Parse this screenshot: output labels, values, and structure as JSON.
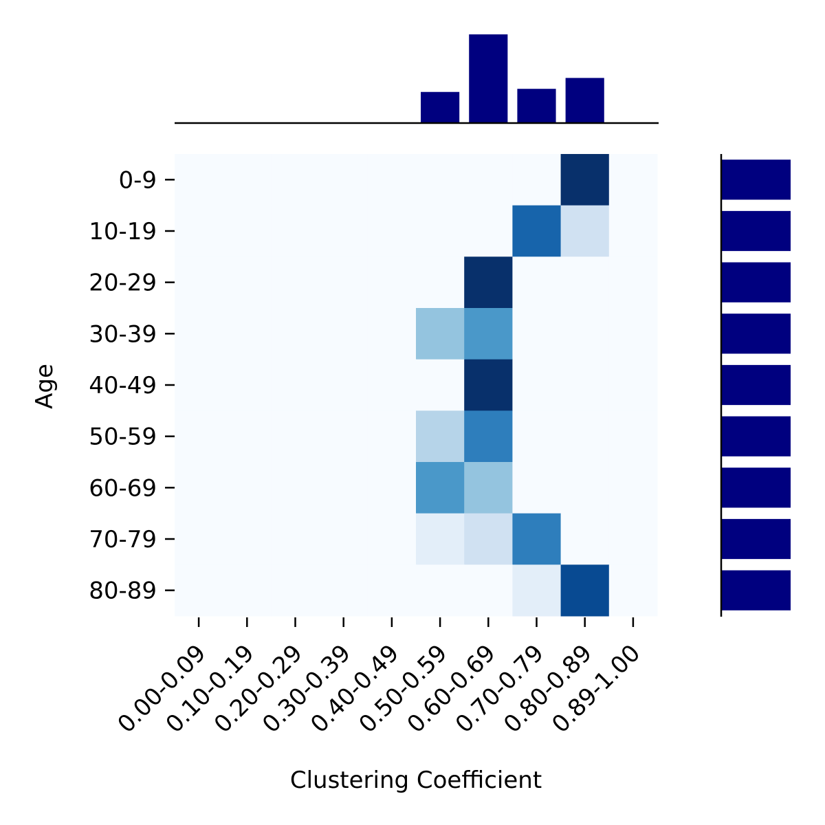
{
  "chart_data": {
    "type": "heatmap",
    "title": "",
    "xlabel": "Clustering Coefficient",
    "ylabel": "Age",
    "x_categories": [
      "0.00-0.09",
      "0.10-0.19",
      "0.20-0.29",
      "0.30-0.39",
      "0.40-0.49",
      "0.50-0.59",
      "0.60-0.69",
      "0.70-0.79",
      "0.80-0.89",
      "0.89-1.00"
    ],
    "y_categories": [
      "0-9",
      "10-19",
      "20-29",
      "30-39",
      "40-49",
      "50-59",
      "60-69",
      "70-79",
      "80-89"
    ],
    "colormap": "Blues",
    "values": [
      [
        0,
        0,
        0,
        0,
        0,
        0,
        0,
        0,
        1.0,
        0
      ],
      [
        0,
        0,
        0,
        0,
        0,
        0,
        0,
        0.8,
        0.2,
        0
      ],
      [
        0,
        0,
        0,
        0,
        0,
        0,
        1.0,
        0,
        0,
        0
      ],
      [
        0,
        0,
        0,
        0,
        0,
        0.4,
        0.6,
        0,
        0,
        0
      ],
      [
        0,
        0,
        0,
        0,
        0,
        0,
        1.0,
        0,
        0,
        0
      ],
      [
        0,
        0,
        0,
        0,
        0,
        0.3,
        0.7,
        0,
        0,
        0
      ],
      [
        0,
        0,
        0,
        0,
        0,
        0.6,
        0.4,
        0,
        0,
        0
      ],
      [
        0,
        0,
        0,
        0,
        0,
        0.1,
        0.2,
        0.7,
        0,
        0
      ],
      [
        0,
        0,
        0,
        0,
        0,
        0,
        0,
        0.1,
        0.9,
        0
      ]
    ],
    "marginal_x": {
      "type": "bar",
      "color": "#00007f",
      "values": [
        0,
        0,
        0,
        0,
        0,
        1.0,
        2.85,
        1.1,
        1.45,
        0
      ]
    },
    "marginal_y": {
      "type": "bar",
      "color": "#00007f",
      "values": [
        1,
        1,
        1,
        1,
        1,
        1,
        1,
        1,
        1
      ]
    },
    "grid": false
  }
}
